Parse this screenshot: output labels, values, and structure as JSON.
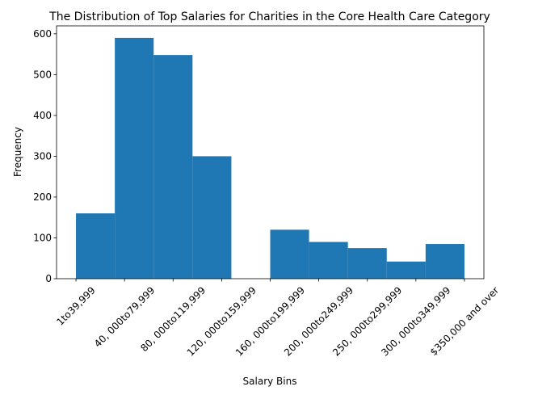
{
  "chart_data": {
    "type": "histogram",
    "title": "The Distribution of Top Salaries for Charities in the Core Health Care Category",
    "xlabel": "Salary Bins",
    "ylabel": "Frequency",
    "bins": [
      0,
      0.8,
      1.6,
      2.4,
      3.2,
      4,
      4.8,
      5.6,
      6.4,
      7.2,
      8
    ],
    "values": [
      160,
      590,
      548,
      300,
      0,
      120,
      90,
      75,
      42,
      85
    ],
    "color": "#1f77b4",
    "xlim": [
      -0.4,
      8.4
    ],
    "xticks": [
      {
        "value": 0,
        "label": "1to39,999"
      },
      {
        "value": 1,
        "label": "40, 000to79,999"
      },
      {
        "value": 2,
        "label": "80, 000to119,999"
      },
      {
        "value": 3,
        "label": "120, 000to159,999"
      },
      {
        "value": 4,
        "label": "160, 000to199,999"
      },
      {
        "value": 5,
        "label": "200, 000to249,999"
      },
      {
        "value": 6,
        "label": "250, 000to299,999"
      },
      {
        "value": 7,
        "label": "300, 000to349,999"
      },
      {
        "value": 8,
        "label": "$350,000 and over"
      }
    ],
    "ylim": [
      0,
      619.5
    ],
    "yticks": [
      0,
      100,
      200,
      300,
      400,
      500,
      600
    ]
  }
}
